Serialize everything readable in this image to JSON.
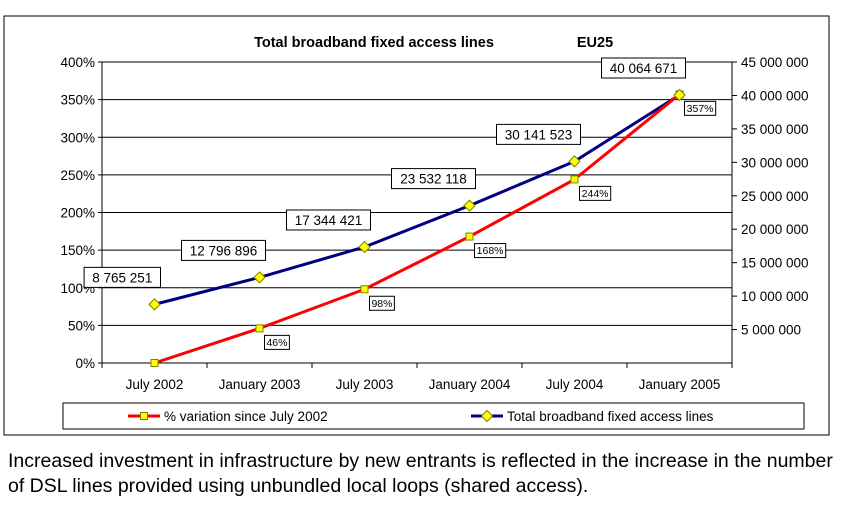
{
  "chart_data": {
    "type": "line",
    "title": "Total broadband fixed access lines",
    "title_region": "EU25",
    "categories": [
      "July 2002",
      "January 2003",
      "July 2003",
      "January 2004",
      "July 2004",
      "January 2005"
    ],
    "series": [
      {
        "name": "% variation since July 2002",
        "axis": "left",
        "color": "#ff0000",
        "marker_color": "#ffff00",
        "marker": "square",
        "values": [
          0,
          46,
          98,
          168,
          244,
          357
        ],
        "data_labels": [
          "",
          "46%",
          "98%",
          "168%",
          "244%",
          "357%"
        ]
      },
      {
        "name": "Total broadband fixed access lines",
        "axis": "right",
        "color": "#000080",
        "marker_color": "#ffff00",
        "marker": "diamond",
        "values": [
          8765251,
          12796896,
          17344421,
          23532118,
          30141523,
          40064671
        ],
        "data_labels": [
          "8 765 251",
          "12 796 896",
          "17 344 421",
          "23 532 118",
          "30 141 523",
          "40 064 671"
        ]
      }
    ],
    "left_axis": {
      "ylim": [
        0,
        400
      ],
      "ticks": [
        0,
        50,
        100,
        150,
        200,
        250,
        300,
        350,
        400
      ],
      "tick_labels": [
        "0%",
        "50%",
        "100%",
        "150%",
        "200%",
        "250%",
        "300%",
        "350%",
        "400%"
      ]
    },
    "right_axis": {
      "ylim": [
        0,
        45000000
      ],
      "ticks": [
        5000000,
        10000000,
        15000000,
        20000000,
        25000000,
        30000000,
        35000000,
        40000000,
        45000000
      ],
      "tick_labels": [
        "5 000 000",
        "10 000 000",
        "15 000 000",
        "20 000 000",
        "25 000 000",
        "30 000 000",
        "35 000 000",
        "40 000 000",
        "45 000 000"
      ]
    },
    "grid": true,
    "legend_position": "bottom"
  },
  "caption": "Increased investment in infrastructure by new entrants is reflected in the increase in the number of DSL lines provided using unbundled local loops (shared access)."
}
